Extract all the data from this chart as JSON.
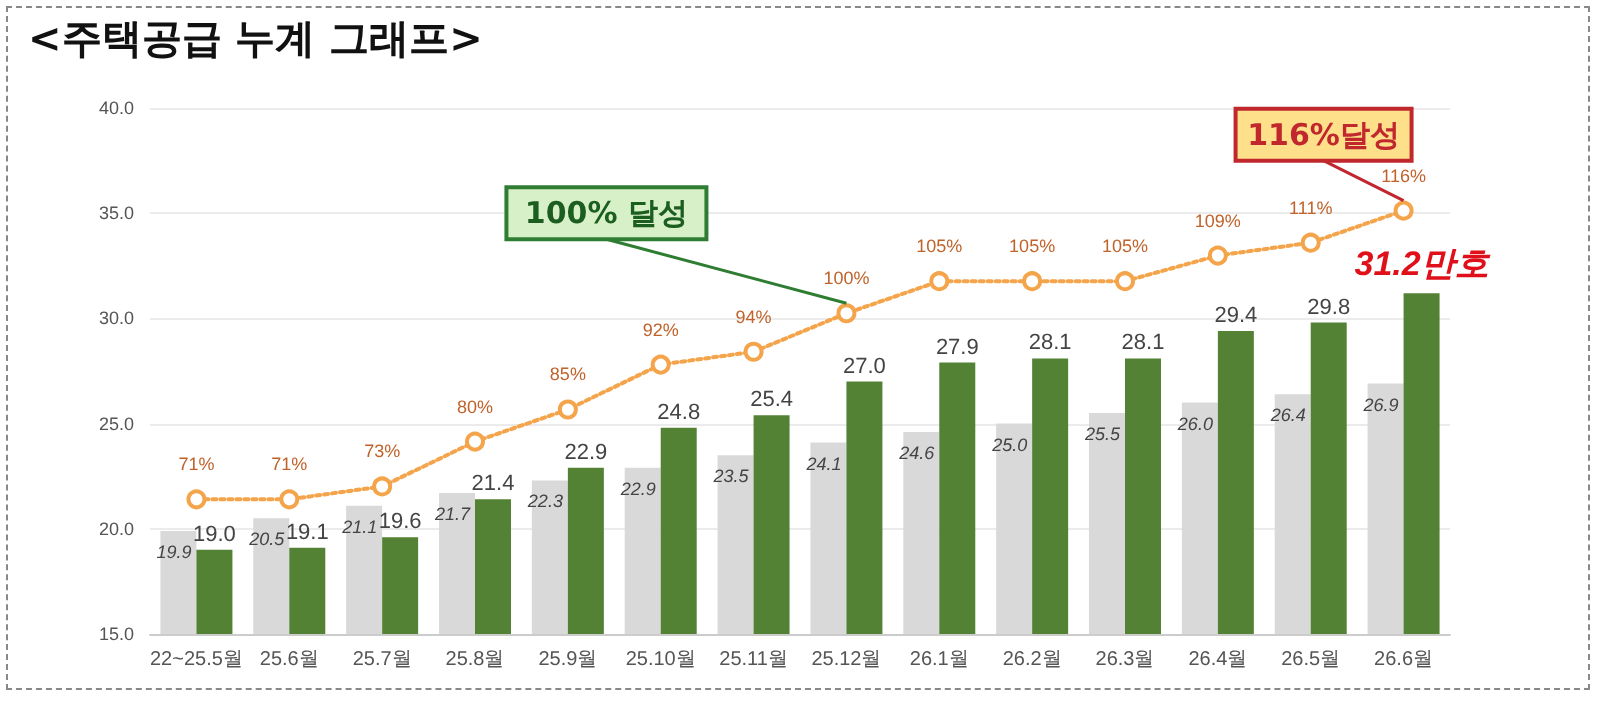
{
  "chart_data": {
    "type": "bar",
    "title": "<주택공급 누계 그래프>",
    "categories": [
      "22~25.5월",
      "25.6월",
      "25.7월",
      "25.8월",
      "25.9월",
      "25.10월",
      "25.11월",
      "25.12월",
      "26.1월",
      "26.2월",
      "26.3월",
      "26.4월",
      "26.5월",
      "26.6월"
    ],
    "series": [
      {
        "color": "#d9d9d9",
        "values": [
          19.9,
          20.5,
          21.1,
          21.7,
          22.3,
          22.9,
          23.5,
          24.1,
          24.6,
          25.0,
          25.5,
          26.0,
          26.4,
          26.9
        ],
        "value_labels": [
          "19.9",
          "20.5",
          "21.1",
          "21.7",
          "22.3",
          "22.9",
          "23.5",
          "24.1",
          "24.6",
          "25.0",
          "25.5",
          "26.0",
          "26.4",
          "26.9"
        ]
      },
      {
        "color": "#548235",
        "values": [
          19.0,
          19.1,
          19.6,
          21.4,
          22.9,
          24.8,
          25.4,
          27.0,
          27.9,
          28.1,
          28.1,
          29.4,
          29.8,
          31.2
        ],
        "value_labels": [
          "19.0",
          "19.1",
          "19.6",
          "21.4",
          "22.9",
          "24.8",
          "25.4",
          "27.0",
          "27.9",
          "28.1",
          "28.1",
          "29.4",
          "29.8",
          "31.2만호"
        ]
      },
      {
        "type": "line",
        "color": "#f4a44a",
        "marker": "circle",
        "line_style": "dotted",
        "axis": "y2",
        "values": [
          71,
          71,
          73,
          80,
          85,
          92,
          94,
          100,
          105,
          105,
          105,
          109,
          111,
          116
        ],
        "value_labels": [
          "71%",
          "71%",
          "73%",
          "80%",
          "85%",
          "92%",
          "94%",
          "100%",
          "105%",
          "105%",
          "105%",
          "109%",
          "111%",
          "116%"
        ]
      }
    ],
    "ylim": [
      15,
      40
    ],
    "yticks": [
      {
        "value": 15,
        "label": "15.0"
      },
      {
        "value": 20,
        "label": "20.0"
      },
      {
        "value": 25,
        "label": "25.0"
      },
      {
        "value": 30,
        "label": "30.0"
      },
      {
        "value": 35,
        "label": "35.0"
      },
      {
        "value": 40,
        "label": "40.0"
      }
    ],
    "y2lim": [
      50,
      132
    ],
    "grid": "y",
    "annotations": [
      "100% 달성",
      "116%달성"
    ]
  }
}
